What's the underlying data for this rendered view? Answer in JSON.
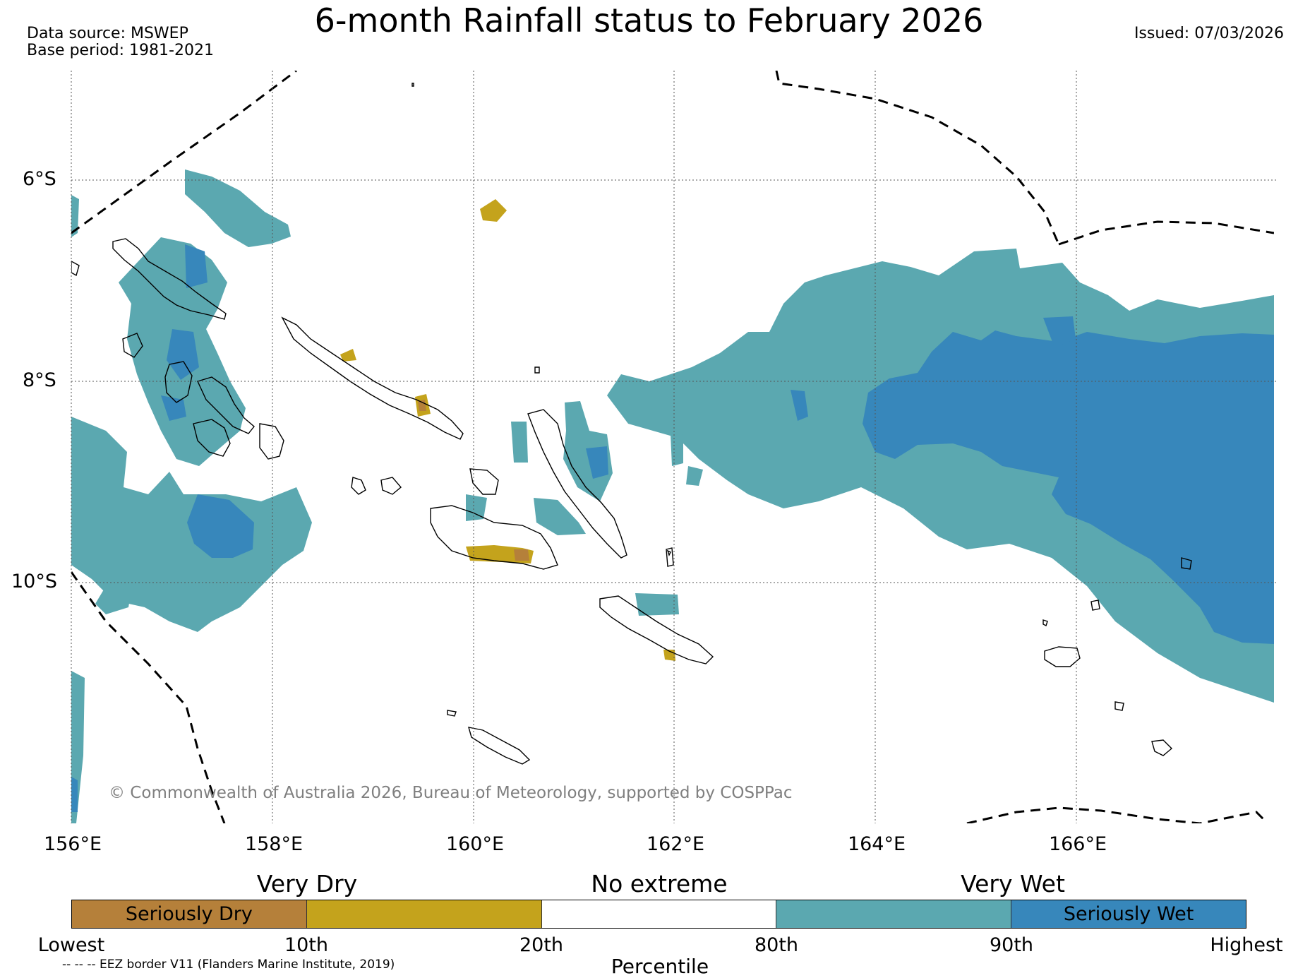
{
  "title": "6-month Rainfall status to February 2026",
  "data_source": "Data source: MSWEP",
  "base_period": "Base period: 1981-2021",
  "issued": "Issued: 07/03/2026",
  "lat_labels": [
    "6°S",
    "8°S",
    "10°S"
  ],
  "lon_labels": [
    "156°E",
    "158°E",
    "160°E",
    "162°E",
    "164°E",
    "166°E"
  ],
  "copyright": "© Commonwealth of Australia 2026, Bureau of Meteorology, supported by COSPPac",
  "legend": {
    "headers": {
      "very_dry": "Very Dry",
      "no_extreme": "No extreme",
      "very_wet": "Very Wet"
    },
    "segments": [
      {
        "label": "Seriously Dry",
        "color": "#b5803a"
      },
      {
        "label": "",
        "color": "#c4a31c"
      },
      {
        "label": "",
        "color": "#ffffff"
      },
      {
        "label": "",
        "color": "#5ba8b0"
      },
      {
        "label": "Seriously Wet",
        "color": "#3787bb"
      }
    ],
    "ticks": [
      "Lowest",
      "10th",
      "20th",
      "80th",
      "90th",
      "Highest"
    ],
    "axis_label": "Percentile"
  },
  "eez_note": "-- -- -- EEZ border V11 (Flanders Marine Institute, 2019)",
  "colors": {
    "seriously_dry": "#b5803a",
    "very_dry": "#c4a31c",
    "very_wet": "#5ba8b0",
    "seriously_wet": "#3787bb",
    "coastline": "#000000"
  }
}
